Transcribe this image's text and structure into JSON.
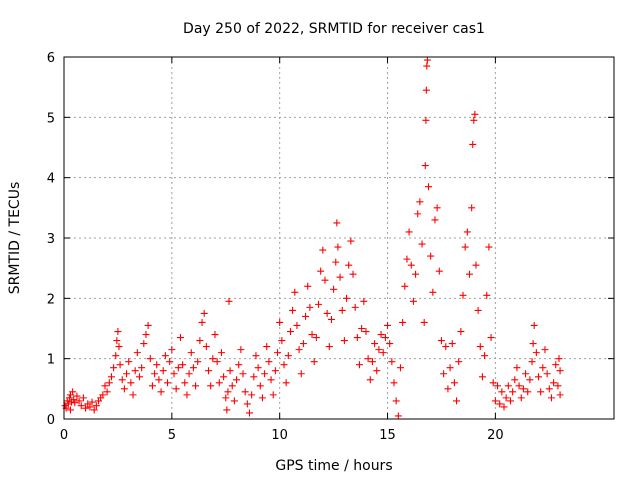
{
  "chart_data": {
    "type": "scatter",
    "title": "Day 250 of 2022, SRMTID for receiver cas1",
    "xlabel": "GPS time / hours",
    "ylabel": "SRMTID / TECUs",
    "xlim": [
      0,
      25.5
    ],
    "ylim": [
      0,
      6
    ],
    "xticks": [
      0,
      5,
      10,
      15,
      20
    ],
    "yticks": [
      0,
      1,
      2,
      3,
      4,
      5,
      6
    ],
    "grid": true,
    "marker": "+",
    "marker_color": "#ff0000",
    "series": [
      {
        "name": "cas1",
        "points": [
          [
            0.05,
            0.22
          ],
          [
            0.1,
            0.18
          ],
          [
            0.15,
            0.3
          ],
          [
            0.2,
            0.25
          ],
          [
            0.25,
            0.35
          ],
          [
            0.3,
            0.4
          ],
          [
            0.35,
            0.28
          ],
          [
            0.4,
            0.45
          ],
          [
            0.45,
            0.32
          ],
          [
            0.5,
            0.27
          ],
          [
            0.6,
            0.38
          ],
          [
            0.7,
            0.3
          ],
          [
            0.8,
            0.22
          ],
          [
            0.9,
            0.35
          ],
          [
            1.0,
            0.18
          ],
          [
            1.1,
            0.25
          ],
          [
            1.2,
            0.2
          ],
          [
            1.3,
            0.28
          ],
          [
            1.4,
            0.15
          ],
          [
            1.5,
            0.22
          ],
          [
            1.6,
            0.3
          ],
          [
            1.7,
            0.35
          ],
          [
            1.8,
            0.4
          ],
          [
            1.9,
            0.55
          ],
          [
            2.0,
            0.45
          ],
          [
            2.1,
            0.6
          ],
          [
            2.2,
            0.7
          ],
          [
            2.3,
            0.85
          ],
          [
            2.4,
            1.05
          ],
          [
            2.45,
            1.3
          ],
          [
            2.5,
            1.45
          ],
          [
            2.55,
            1.2
          ],
          [
            2.6,
            0.9
          ],
          [
            2.7,
            0.65
          ],
          [
            2.8,
            0.5
          ],
          [
            2.9,
            0.75
          ],
          [
            3.0,
            0.95
          ],
          [
            3.1,
            0.6
          ],
          [
            3.2,
            0.4
          ],
          [
            3.3,
            0.8
          ],
          [
            3.4,
            1.1
          ],
          [
            3.5,
            0.7
          ],
          [
            3.6,
            0.85
          ],
          [
            3.7,
            1.25
          ],
          [
            3.8,
            1.4
          ],
          [
            3.9,
            1.55
          ],
          [
            4.0,
            1.0
          ],
          [
            4.1,
            0.55
          ],
          [
            4.2,
            0.75
          ],
          [
            4.3,
            0.9
          ],
          [
            4.4,
            0.65
          ],
          [
            4.5,
            0.45
          ],
          [
            4.6,
            0.8
          ],
          [
            4.7,
            1.05
          ],
          [
            4.8,
            0.6
          ],
          [
            4.9,
            0.95
          ],
          [
            5.0,
            1.15
          ],
          [
            5.1,
            0.75
          ],
          [
            5.2,
            0.5
          ],
          [
            5.3,
            0.85
          ],
          [
            5.4,
            1.35
          ],
          [
            5.5,
            0.9
          ],
          [
            5.6,
            0.6
          ],
          [
            5.7,
            0.4
          ],
          [
            5.8,
            0.75
          ],
          [
            5.9,
            1.1
          ],
          [
            6.0,
            0.85
          ],
          [
            6.1,
            0.55
          ],
          [
            6.2,
            0.95
          ],
          [
            6.3,
            1.3
          ],
          [
            6.4,
            1.6
          ],
          [
            6.5,
            1.75
          ],
          [
            6.6,
            1.2
          ],
          [
            6.7,
            0.8
          ],
          [
            6.8,
            0.55
          ],
          [
            6.9,
            1.0
          ],
          [
            7.0,
            1.4
          ],
          [
            7.1,
            0.95
          ],
          [
            7.2,
            0.6
          ],
          [
            7.3,
            1.1
          ],
          [
            7.4,
            0.7
          ],
          [
            7.5,
            0.35
          ],
          [
            7.55,
            0.15
          ],
          [
            7.6,
            0.45
          ],
          [
            7.65,
            1.95
          ],
          [
            7.7,
            0.8
          ],
          [
            7.8,
            0.55
          ],
          [
            7.9,
            0.3
          ],
          [
            8.0,
            0.65
          ],
          [
            8.1,
            0.9
          ],
          [
            8.2,
            1.15
          ],
          [
            8.3,
            0.75
          ],
          [
            8.4,
            0.45
          ],
          [
            8.5,
            0.25
          ],
          [
            8.6,
            0.1
          ],
          [
            8.7,
            0.4
          ],
          [
            8.8,
            0.7
          ],
          [
            8.9,
            1.05
          ],
          [
            9.0,
            0.85
          ],
          [
            9.1,
            0.55
          ],
          [
            9.2,
            0.35
          ],
          [
            9.3,
            0.75
          ],
          [
            9.4,
            1.2
          ],
          [
            9.5,
            0.95
          ],
          [
            9.6,
            0.65
          ],
          [
            9.7,
            0.4
          ],
          [
            9.8,
            0.8
          ],
          [
            9.9,
            1.1
          ],
          [
            10.0,
            1.6
          ],
          [
            10.1,
            1.3
          ],
          [
            10.2,
            0.9
          ],
          [
            10.3,
            0.6
          ],
          [
            10.4,
            1.05
          ],
          [
            10.5,
            1.45
          ],
          [
            10.6,
            1.8
          ],
          [
            10.7,
            2.1
          ],
          [
            10.8,
            1.55
          ],
          [
            10.9,
            1.15
          ],
          [
            11.0,
            0.75
          ],
          [
            11.1,
            1.25
          ],
          [
            11.2,
            1.7
          ],
          [
            11.3,
            2.2
          ],
          [
            11.4,
            1.85
          ],
          [
            11.5,
            1.4
          ],
          [
            11.6,
            0.95
          ],
          [
            11.7,
            1.35
          ],
          [
            11.8,
            1.9
          ],
          [
            11.9,
            2.45
          ],
          [
            12.0,
            2.8
          ],
          [
            12.1,
            2.3
          ],
          [
            12.2,
            1.75
          ],
          [
            12.3,
            1.2
          ],
          [
            12.4,
            1.65
          ],
          [
            12.5,
            2.15
          ],
          [
            12.6,
            2.6
          ],
          [
            12.65,
            3.25
          ],
          [
            12.7,
            2.85
          ],
          [
            12.8,
            2.35
          ],
          [
            12.9,
            1.8
          ],
          [
            13.0,
            1.3
          ],
          [
            13.1,
            2.0
          ],
          [
            13.2,
            2.55
          ],
          [
            13.3,
            2.95
          ],
          [
            13.4,
            2.4
          ],
          [
            13.5,
            1.85
          ],
          [
            13.6,
            1.35
          ],
          [
            13.7,
            0.9
          ],
          [
            13.8,
            1.5
          ],
          [
            13.9,
            1.95
          ],
          [
            14.0,
            1.45
          ],
          [
            14.1,
            1.0
          ],
          [
            14.2,
            0.65
          ],
          [
            14.3,
            0.95
          ],
          [
            14.4,
            1.25
          ],
          [
            14.5,
            0.8
          ],
          [
            14.6,
            1.15
          ],
          [
            14.7,
            1.4
          ],
          [
            14.8,
            1.1
          ],
          [
            14.9,
            1.35
          ],
          [
            15.0,
            1.55
          ],
          [
            15.1,
            1.25
          ],
          [
            15.2,
            0.95
          ],
          [
            15.3,
            0.6
          ],
          [
            15.4,
            0.3
          ],
          [
            15.5,
            0.05
          ],
          [
            15.6,
            0.85
          ],
          [
            15.7,
            1.6
          ],
          [
            15.8,
            2.2
          ],
          [
            15.9,
            2.65
          ],
          [
            16.0,
            3.1
          ],
          [
            16.1,
            2.55
          ],
          [
            16.2,
            1.95
          ],
          [
            16.3,
            2.4
          ],
          [
            16.4,
            3.4
          ],
          [
            16.5,
            3.6
          ],
          [
            16.6,
            2.9
          ],
          [
            16.7,
            1.6
          ],
          [
            16.75,
            4.2
          ],
          [
            16.78,
            4.95
          ],
          [
            16.8,
            5.45
          ],
          [
            16.82,
            5.85
          ],
          [
            16.85,
            5.95
          ],
          [
            16.9,
            3.85
          ],
          [
            17.0,
            2.7
          ],
          [
            17.1,
            2.1
          ],
          [
            17.2,
            3.3
          ],
          [
            17.3,
            3.5
          ],
          [
            17.4,
            2.45
          ],
          [
            17.5,
            1.3
          ],
          [
            17.6,
            0.75
          ],
          [
            17.7,
            1.2
          ],
          [
            17.8,
            0.5
          ],
          [
            17.9,
            0.85
          ],
          [
            18.0,
            1.25
          ],
          [
            18.1,
            0.6
          ],
          [
            18.2,
            0.3
          ],
          [
            18.3,
            0.95
          ],
          [
            18.4,
            1.45
          ],
          [
            18.5,
            2.05
          ],
          [
            18.6,
            2.85
          ],
          [
            18.7,
            3.1
          ],
          [
            18.8,
            2.4
          ],
          [
            18.9,
            3.5
          ],
          [
            18.95,
            4.55
          ],
          [
            19.0,
            4.95
          ],
          [
            19.05,
            5.05
          ],
          [
            19.1,
            2.55
          ],
          [
            19.2,
            1.8
          ],
          [
            19.3,
            1.2
          ],
          [
            19.4,
            0.7
          ],
          [
            19.5,
            1.05
          ],
          [
            19.6,
            2.05
          ],
          [
            19.7,
            2.85
          ],
          [
            19.8,
            1.35
          ],
          [
            19.9,
            0.6
          ],
          [
            20.0,
            0.3
          ],
          [
            20.1,
            0.55
          ],
          [
            20.2,
            0.25
          ],
          [
            20.3,
            0.45
          ],
          [
            20.4,
            0.2
          ],
          [
            20.5,
            0.35
          ],
          [
            20.6,
            0.55
          ],
          [
            20.7,
            0.3
          ],
          [
            20.8,
            0.45
          ],
          [
            20.9,
            0.65
          ],
          [
            21.0,
            0.85
          ],
          [
            21.1,
            0.55
          ],
          [
            21.2,
            0.35
          ],
          [
            21.3,
            0.5
          ],
          [
            21.4,
            0.75
          ],
          [
            21.5,
            0.45
          ],
          [
            21.6,
            0.65
          ],
          [
            21.7,
            0.95
          ],
          [
            21.75,
            1.25
          ],
          [
            21.8,
            1.55
          ],
          [
            21.9,
            1.1
          ],
          [
            22.0,
            0.7
          ],
          [
            22.1,
            0.45
          ],
          [
            22.2,
            0.85
          ],
          [
            22.3,
            1.15
          ],
          [
            22.4,
            0.75
          ],
          [
            22.5,
            0.5
          ],
          [
            22.6,
            0.35
          ],
          [
            22.7,
            0.6
          ],
          [
            22.8,
            0.9
          ],
          [
            22.9,
            0.55
          ],
          [
            23.0,
            0.4
          ],
          [
            23.0,
            0.8
          ],
          [
            22.95,
            1.0
          ],
          [
            0.3,
            0.15
          ]
        ]
      }
    ]
  }
}
